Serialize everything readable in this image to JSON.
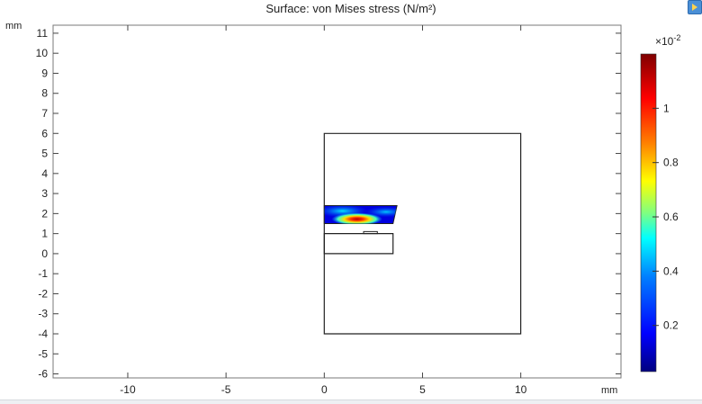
{
  "plot": {
    "title": "Surface: von Mises stress (N/m²)",
    "y_unit": "mm",
    "x_unit": "mm",
    "x_ticks": [
      "-10",
      "-5",
      "0",
      "5",
      "10"
    ],
    "x_tick_values": [
      -10,
      -5,
      0,
      5,
      10
    ],
    "y_ticks": [
      "11",
      "10",
      "9",
      "8",
      "7",
      "6",
      "5",
      "4",
      "3",
      "2",
      "1",
      "0",
      "-1",
      "-2",
      "-3",
      "-4",
      "-5",
      "-6"
    ],
    "y_tick_values": [
      11,
      10,
      9,
      8,
      7,
      6,
      5,
      4,
      3,
      2,
      1,
      0,
      -1,
      -2,
      -3,
      -4,
      -5,
      -6
    ],
    "x_range": [
      -13.8,
      15.1
    ],
    "y_range": [
      -6.2,
      11.4
    ]
  },
  "colorbar": {
    "multiplier_base": "×10",
    "multiplier_exp": "-2",
    "ticks": [
      "1",
      "0.8",
      "0.6",
      "0.4",
      "0.2"
    ],
    "tick_values": [
      1.0,
      0.8,
      0.6,
      0.4,
      0.2
    ],
    "range": [
      0.03,
      1.2
    ],
    "colors": [
      "#00007f",
      "#0000ff",
      "#0080ff",
      "#00ffff",
      "#80ff80",
      "#ffff00",
      "#ff8000",
      "#ff0000",
      "#7f0000"
    ]
  },
  "geometry_mm": {
    "outer_box": [
      [
        0,
        -4
      ],
      [
        10,
        -4
      ],
      [
        10,
        6
      ],
      [
        0,
        6
      ]
    ],
    "lower_block": [
      [
        0,
        0
      ],
      [
        3.5,
        0
      ],
      [
        3.5,
        1
      ],
      [
        0,
        1
      ]
    ],
    "small_bump": [
      [
        2,
        1
      ],
      [
        2.7,
        1
      ],
      [
        2.7,
        1.1
      ],
      [
        2,
        1.1
      ]
    ],
    "stressed_beam": [
      [
        0,
        1.5
      ],
      [
        3.5,
        1.5
      ],
      [
        3.7,
        2.4
      ],
      [
        0,
        2.4
      ]
    ]
  },
  "toolbar": {
    "icon": "play-icon"
  }
}
